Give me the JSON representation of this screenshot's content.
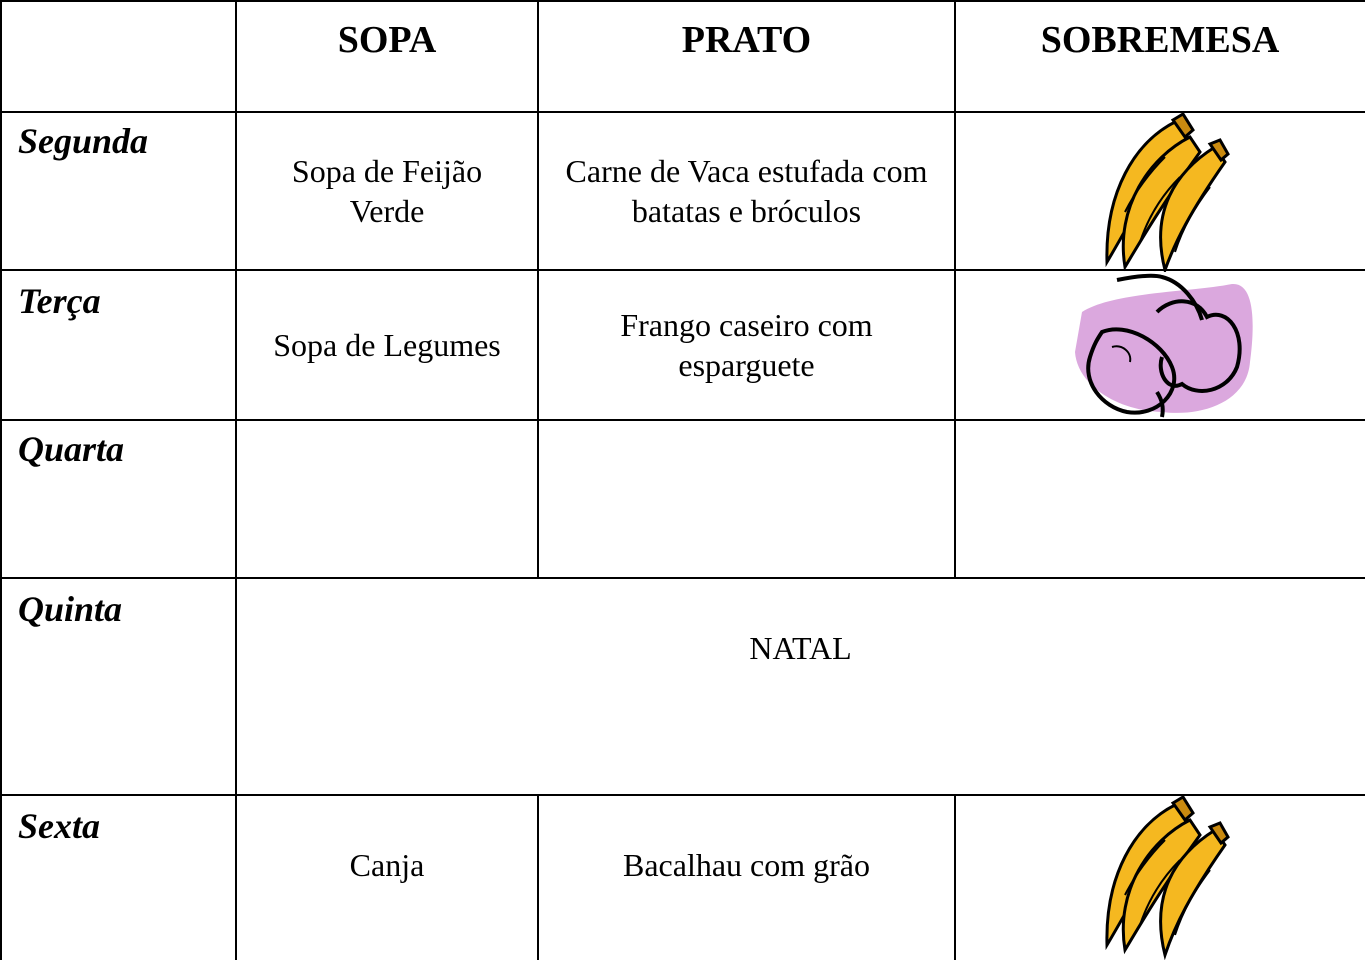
{
  "table": {
    "header": [
      "SOPA",
      "PRATO",
      "SOBREMESA"
    ],
    "rows": [
      {
        "day": "Segunda",
        "cells": [
          "Sopa de Feijão Verde",
          "Carne de Vaca estufada com batatas e bróculos"
        ]
      },
      {
        "day": "Terça",
        "cells": [
          "Sopa de Legumes",
          "Frango caseiro com esparguete"
        ]
      },
      {
        "day": "Quarta",
        "cells": []
      },
      {
        "day": "Quinta",
        "cells": [
          "NATAL"
        ]
      },
      {
        "day": "Sexta",
        "cells": [
          "Canja",
          "Bacalhau com grão"
        ]
      }
    ]
  }
}
